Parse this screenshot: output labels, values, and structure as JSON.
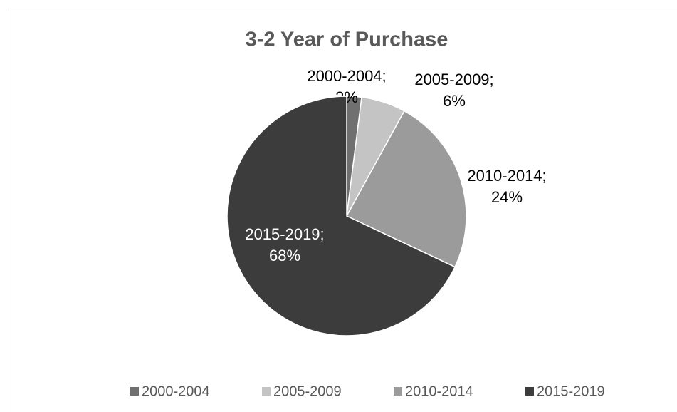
{
  "chart_data": {
    "type": "pie",
    "title": "3-2 Year of Purchase",
    "categories": [
      "2000-2004",
      "2005-2009",
      "2010-2014",
      "2015-2019"
    ],
    "values": [
      2,
      6,
      24,
      68
    ],
    "value_labels": [
      "2%",
      "6%",
      "24%",
      "68%"
    ],
    "label_separator": ";",
    "colors": [
      "#707070",
      "#c4c4c4",
      "#9b9b9b",
      "#3c3c3c"
    ],
    "legend": "bottom"
  }
}
